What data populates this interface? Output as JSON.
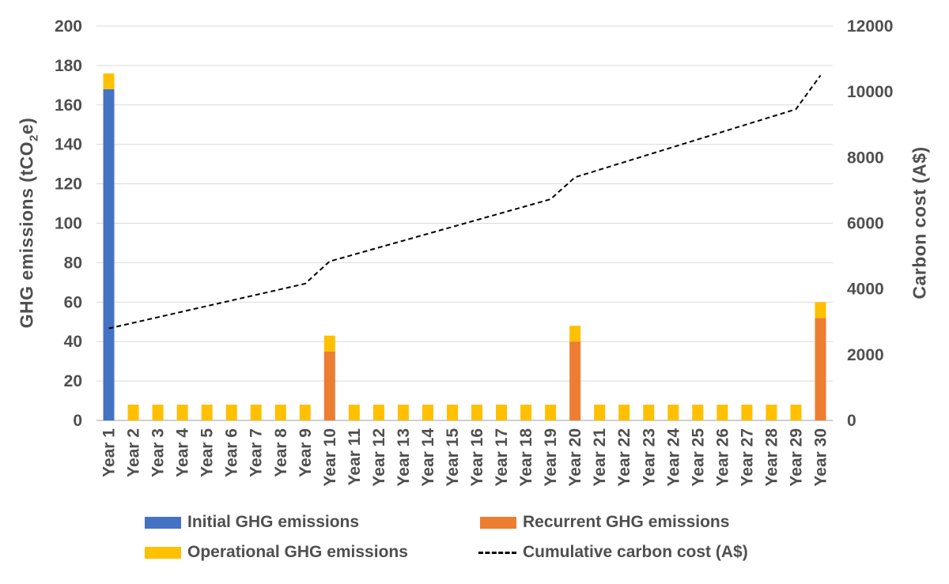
{
  "chart_data": {
    "type": "combo_stacked_bar_line",
    "title": "",
    "categories": [
      "Year 1",
      "Year 2",
      "Year 3",
      "Year 4",
      "Year 5",
      "Year 6",
      "Year 7",
      "Year 8",
      "Year 9",
      "Year 10",
      "Year 11",
      "Year 12",
      "Year 13",
      "Year 14",
      "Year 15",
      "Year 16",
      "Year 17",
      "Year 18",
      "Year 19",
      "Year 20",
      "Year 21",
      "Year 22",
      "Year 23",
      "Year 24",
      "Year 25",
      "Year 26",
      "Year 27",
      "Year 28",
      "Year 29",
      "Year 30"
    ],
    "series": [
      {
        "name": "Initial GHG emissions",
        "axis": "left",
        "color": "#4472C4",
        "values": [
          168,
          0,
          0,
          0,
          0,
          0,
          0,
          0,
          0,
          0,
          0,
          0,
          0,
          0,
          0,
          0,
          0,
          0,
          0,
          0,
          0,
          0,
          0,
          0,
          0,
          0,
          0,
          0,
          0,
          0
        ]
      },
      {
        "name": "Recurrent GHG emissions",
        "axis": "left",
        "color": "#ED7D31",
        "values": [
          0,
          0,
          0,
          0,
          0,
          0,
          0,
          0,
          0,
          35,
          0,
          0,
          0,
          0,
          0,
          0,
          0,
          0,
          0,
          40,
          0,
          0,
          0,
          0,
          0,
          0,
          0,
          0,
          0,
          52
        ]
      },
      {
        "name": "Operational GHG emissions",
        "axis": "left",
        "color": "#FFC000",
        "values": [
          8,
          8,
          8,
          8,
          8,
          8,
          8,
          8,
          8,
          8,
          8,
          8,
          8,
          8,
          8,
          8,
          8,
          8,
          8,
          8,
          8,
          8,
          8,
          8,
          8,
          8,
          8,
          8,
          8,
          8
        ]
      }
    ],
    "line_series": {
      "name": "Cumulative carbon cost (A$)",
      "axis": "right",
      "color": "#000000",
      "style": "dashed",
      "values": [
        2800,
        2970,
        3140,
        3310,
        3480,
        3650,
        3820,
        3990,
        4160,
        4840,
        5050,
        5260,
        5470,
        5680,
        5890,
        6100,
        6310,
        6520,
        6730,
        7400,
        7630,
        7860,
        8090,
        8320,
        8550,
        8780,
        9010,
        9240,
        9470,
        10500
      ]
    },
    "left_axis": {
      "title_pre": "GHG emissions (tCO",
      "title_sub": "2",
      "title_post": "e)",
      "min": 0,
      "max": 200,
      "step": 20,
      "ticks": [
        0,
        20,
        40,
        60,
        80,
        100,
        120,
        140,
        160,
        180,
        200
      ]
    },
    "right_axis": {
      "title": "Carbon cost (A$)",
      "min": 0,
      "max": 12000,
      "step": 2000,
      "ticks": [
        0,
        2000,
        4000,
        6000,
        8000,
        10000,
        12000
      ]
    },
    "legend_position": "bottom",
    "grid": "horizontal-only",
    "colors": {
      "grid": "#D9D9D9",
      "axis_line": "#BFBFBF",
      "text": "#4F4F4F",
      "background": "#FFFFFF"
    }
  }
}
